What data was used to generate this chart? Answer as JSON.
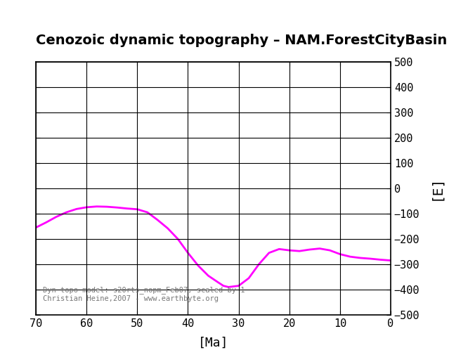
{
  "title": "Cenozoic dynamic topography – NAM.ForestCityBasin",
  "xlabel": "[Ma]",
  "ylabel": "[E]",
  "xlim": [
    70,
    0
  ],
  "ylim": [
    -500,
    500
  ],
  "xticks": [
    70,
    60,
    50,
    40,
    30,
    20,
    10,
    0
  ],
  "yticks": [
    -500,
    -400,
    -300,
    -200,
    -100,
    0,
    100,
    200,
    300,
    400,
    500
  ],
  "line_color": "#FF00FF",
  "line_width": 2.0,
  "annotation": "Dyn topo model: s20rts_nopm_Feb07, scaled by 1\nChristian Heine,2007 - www.earthbyte.org",
  "annotation_color": "#777777",
  "curve_x": [
    70,
    68,
    66,
    64,
    62,
    60,
    58,
    56,
    54,
    52,
    50,
    48,
    46,
    44,
    42,
    40,
    38,
    36,
    34,
    33,
    32,
    30,
    28,
    26,
    24,
    22,
    20,
    18,
    16,
    14,
    12,
    10,
    8,
    6,
    4,
    2,
    0
  ],
  "curve_y": [
    -155,
    -135,
    -113,
    -95,
    -82,
    -75,
    -72,
    -73,
    -76,
    -80,
    -83,
    -95,
    -125,
    -158,
    -200,
    -255,
    -305,
    -345,
    -372,
    -385,
    -390,
    -385,
    -355,
    -300,
    -255,
    -240,
    -245,
    -248,
    -242,
    -238,
    -245,
    -260,
    -270,
    -275,
    -278,
    -282,
    -285
  ]
}
